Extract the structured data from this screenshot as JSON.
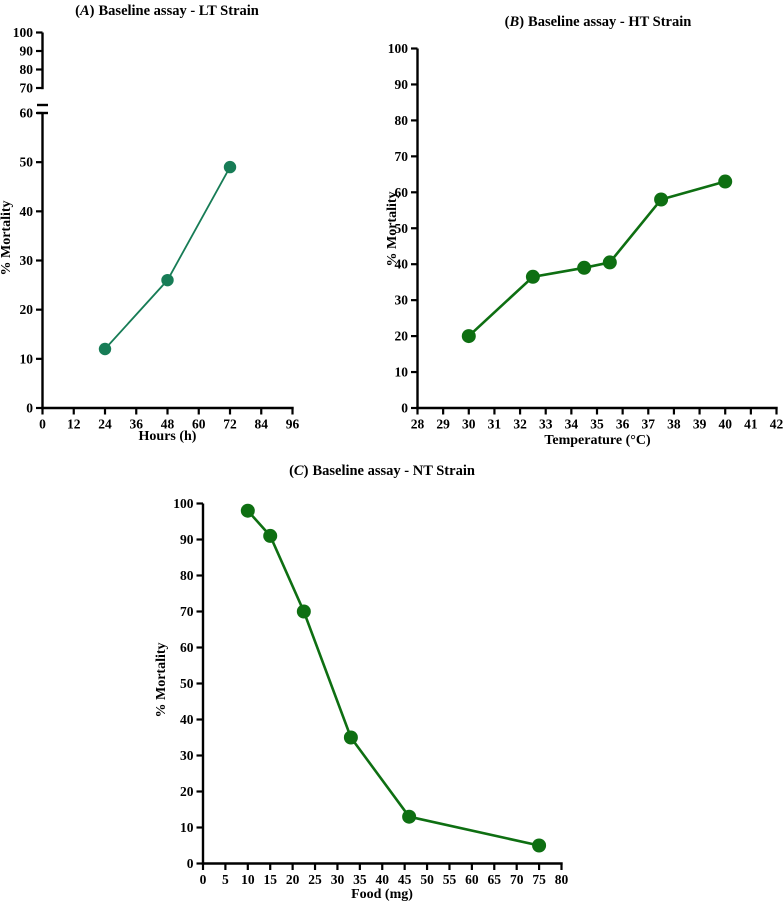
{
  "figure": {
    "background": "#ffffff",
    "text_color": "#000000"
  },
  "chart_data": [
    {
      "id": "A",
      "type": "line",
      "title": {
        "open": "(",
        "letter": "A",
        "close": ")",
        "text": "Baseline assay - LT Strain"
      },
      "xlabel": "Hours (h)",
      "ylabel": "% Mortality",
      "color": "#177c56",
      "x": [
        24,
        48,
        72
      ],
      "y": [
        12,
        26,
        49
      ],
      "xticks": [
        0,
        12,
        24,
        36,
        48,
        60,
        72,
        84,
        96
      ],
      "xlim": [
        0,
        96
      ],
      "y_axis": {
        "broken": true,
        "lower": {
          "ticks": [
            0,
            10,
            20,
            30,
            40,
            50,
            60
          ],
          "range": [
            0,
            60
          ]
        },
        "upper": {
          "ticks": [
            70,
            80,
            90,
            100
          ],
          "range": [
            70,
            100
          ]
        }
      },
      "grid": false,
      "legend": null
    },
    {
      "id": "B",
      "type": "line",
      "title": {
        "open": "(",
        "letter": "B",
        "close": ")",
        "text": "Baseline assay - HT Strain"
      },
      "xlabel": "Temperature (°C)",
      "ylabel": "% Mortality",
      "color": "#0e6f12",
      "x": [
        30,
        32.5,
        34.5,
        35.5,
        37.5,
        40
      ],
      "y": [
        20,
        36.5,
        39,
        40.5,
        58,
        63
      ],
      "xticks": [
        28,
        29,
        30,
        31,
        32,
        33,
        34,
        35,
        36,
        37,
        38,
        39,
        40,
        41,
        42
      ],
      "xlim": [
        28,
        42
      ],
      "y_axis": {
        "broken": false,
        "ticks": [
          0,
          10,
          20,
          30,
          40,
          50,
          60,
          70,
          80,
          90,
          100
        ],
        "range": [
          0,
          100
        ]
      },
      "grid": false,
      "legend": null
    },
    {
      "id": "C",
      "type": "line",
      "title": {
        "open": "(",
        "letter": "C",
        "close": ")",
        "text": "Baseline assay - NT Strain"
      },
      "xlabel": "Food (mg)",
      "ylabel": "% Mortality",
      "color": "#0e6f12",
      "x": [
        10,
        15,
        22.5,
        33,
        46,
        75
      ],
      "y": [
        98,
        91,
        70,
        35,
        13,
        5
      ],
      "xticks": [
        0,
        5,
        10,
        15,
        20,
        25,
        30,
        35,
        40,
        45,
        50,
        55,
        60,
        65,
        70,
        75,
        80
      ],
      "xlim": [
        0,
        80
      ],
      "y_axis": {
        "broken": false,
        "ticks": [
          0,
          10,
          20,
          30,
          40,
          50,
          60,
          70,
          80,
          90,
          100
        ],
        "range": [
          0,
          100
        ]
      },
      "grid": false,
      "legend": null
    }
  ]
}
